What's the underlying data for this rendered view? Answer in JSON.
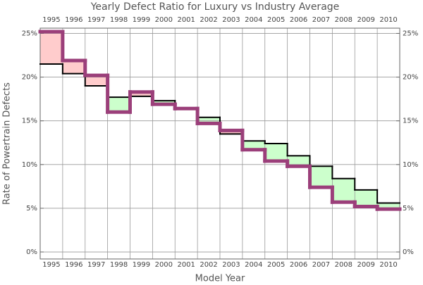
{
  "chart_data": {
    "type": "step",
    "title": "Yearly Defect Ratio for Luxury vs Industry Average",
    "x_label": "Model Year",
    "y_label": "Rate of Powertrain Defects",
    "categories": [
      "1995",
      "1996",
      "1997",
      "1998",
      "1999",
      "2000",
      "2001",
      "2002",
      "2003",
      "2004",
      "2005",
      "2006",
      "2007",
      "2008",
      "2009",
      "2010"
    ],
    "series": [
      {
        "color": "#9b3f7a",
        "values": [
          25.2,
          21.9,
          20.2,
          16.0,
          18.3,
          16.9,
          16.4,
          14.7,
          13.9,
          11.7,
          10.4,
          9.8,
          7.4,
          5.7,
          5.2,
          4.9
        ]
      },
      {
        "color": "#000000",
        "values": [
          21.5,
          20.4,
          19.0,
          17.7,
          17.8,
          17.3,
          16.3,
          15.4,
          13.5,
          12.7,
          12.4,
          11.0,
          9.8,
          8.4,
          7.1,
          5.6
        ]
      }
    ],
    "fill_above": "#ffcccc",
    "fill_below": "#ccffcc",
    "ylim": [
      -0.8,
      25.6
    ],
    "yticks": [
      {
        "value": 0,
        "label": "0%"
      },
      {
        "value": 5,
        "label": "5%"
      },
      {
        "value": 10,
        "label": "10%"
      },
      {
        "value": 15,
        "label": "15%"
      },
      {
        "value": 20,
        "label": "20%"
      },
      {
        "value": 25,
        "label": "25%"
      }
    ],
    "grid": true
  }
}
